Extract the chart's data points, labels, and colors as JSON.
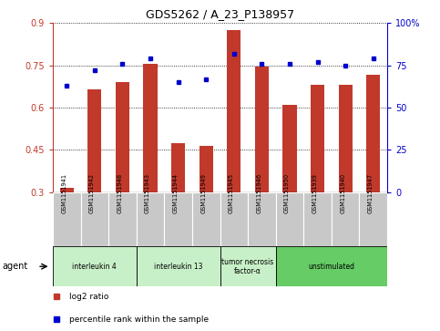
{
  "title": "GDS5262 / A_23_P138957",
  "samples": [
    "GSM1151941",
    "GSM1151942",
    "GSM1151948",
    "GSM1151943",
    "GSM1151944",
    "GSM1151949",
    "GSM1151945",
    "GSM1151946",
    "GSM1151950",
    "GSM1151939",
    "GSM1151940",
    "GSM1151947"
  ],
  "log2_ratio": [
    0.315,
    0.665,
    0.69,
    0.755,
    0.475,
    0.465,
    0.876,
    0.745,
    0.61,
    0.68,
    0.68,
    0.718
  ],
  "percentile_rank": [
    63,
    72,
    76,
    79,
    65,
    67,
    82,
    76,
    76,
    77,
    75,
    79
  ],
  "groups": [
    {
      "label": "interleukin 4",
      "indices": [
        0,
        1,
        2
      ],
      "color": "#c8f0c8"
    },
    {
      "label": "interleukin 13",
      "indices": [
        3,
        4,
        5
      ],
      "color": "#c8f0c8"
    },
    {
      "label": "tumor necrosis\nfactor-α",
      "indices": [
        6,
        7
      ],
      "color": "#c8f0c8"
    },
    {
      "label": "unstimulated",
      "indices": [
        8,
        9,
        10,
        11
      ],
      "color": "#66cc66"
    }
  ],
  "bar_color": "#c0392b",
  "dot_color": "#0000cc",
  "ylim_left": [
    0.3,
    0.9
  ],
  "ylim_right": [
    0,
    100
  ],
  "yticks_left": [
    0.3,
    0.45,
    0.6,
    0.75,
    0.9
  ],
  "yticks_right": [
    0,
    25,
    50,
    75,
    100
  ],
  "bg_color_sample_row": "#c8c8c8",
  "bar_width": 0.5,
  "legend_items": [
    {
      "color": "#c0392b",
      "label": "log2 ratio"
    },
    {
      "color": "#0000cc",
      "label": "percentile rank within the sample"
    }
  ]
}
